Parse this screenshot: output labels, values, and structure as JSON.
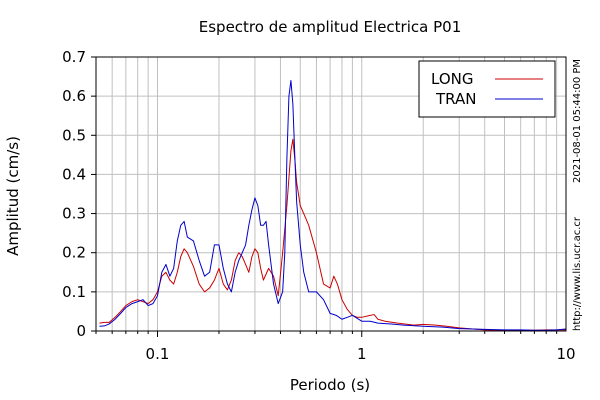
{
  "chart_data": {
    "type": "line",
    "title": "Espectro de amplitud Electrica P01",
    "xlabel": "Periodo (s)",
    "ylabel": "Amplitud (cm/s)",
    "xscale": "log",
    "xlim": [
      0.05,
      10
    ],
    "ylim": [
      0,
      0.7
    ],
    "x_ticks": [
      {
        "v": 0.1,
        "label": "0.1"
      },
      {
        "v": 1,
        "label": "1"
      },
      {
        "v": 10,
        "label": "10"
      }
    ],
    "y_ticks": [
      {
        "v": 0,
        "label": "0"
      },
      {
        "v": 0.1,
        "label": "0.1"
      },
      {
        "v": 0.2,
        "label": "0.2"
      },
      {
        "v": 0.3,
        "label": "0.3"
      },
      {
        "v": 0.4,
        "label": "0.4"
      },
      {
        "v": 0.5,
        "label": "0.5"
      },
      {
        "v": 0.6,
        "label": "0.6"
      },
      {
        "v": 0.7,
        "label": "0.7"
      }
    ],
    "grid": true,
    "legend_position": "top-right",
    "series": [
      {
        "name": "LONG",
        "color": "#cc0000",
        "points": [
          [
            0.052,
            0.02
          ],
          [
            0.055,
            0.022
          ],
          [
            0.058,
            0.022
          ],
          [
            0.062,
            0.035
          ],
          [
            0.066,
            0.05
          ],
          [
            0.07,
            0.065
          ],
          [
            0.075,
            0.075
          ],
          [
            0.08,
            0.08
          ],
          [
            0.085,
            0.075
          ],
          [
            0.09,
            0.07
          ],
          [
            0.095,
            0.08
          ],
          [
            0.1,
            0.1
          ],
          [
            0.105,
            0.14
          ],
          [
            0.11,
            0.15
          ],
          [
            0.115,
            0.13
          ],
          [
            0.12,
            0.12
          ],
          [
            0.125,
            0.15
          ],
          [
            0.13,
            0.19
          ],
          [
            0.135,
            0.21
          ],
          [
            0.14,
            0.2
          ],
          [
            0.15,
            0.165
          ],
          [
            0.16,
            0.12
          ],
          [
            0.17,
            0.1
          ],
          [
            0.18,
            0.11
          ],
          [
            0.19,
            0.13
          ],
          [
            0.2,
            0.16
          ],
          [
            0.21,
            0.12
          ],
          [
            0.22,
            0.105
          ],
          [
            0.23,
            0.13
          ],
          [
            0.24,
            0.18
          ],
          [
            0.25,
            0.2
          ],
          [
            0.26,
            0.19
          ],
          [
            0.27,
            0.17
          ],
          [
            0.28,
            0.15
          ],
          [
            0.29,
            0.19
          ],
          [
            0.3,
            0.21
          ],
          [
            0.31,
            0.2
          ],
          [
            0.32,
            0.16
          ],
          [
            0.33,
            0.13
          ],
          [
            0.35,
            0.16
          ],
          [
            0.37,
            0.14
          ],
          [
            0.39,
            0.09
          ],
          [
            0.41,
            0.2
          ],
          [
            0.43,
            0.32
          ],
          [
            0.45,
            0.46
          ],
          [
            0.46,
            0.49
          ],
          [
            0.47,
            0.44
          ],
          [
            0.48,
            0.38
          ],
          [
            0.5,
            0.32
          ],
          [
            0.52,
            0.3
          ],
          [
            0.55,
            0.27
          ],
          [
            0.6,
            0.2
          ],
          [
            0.65,
            0.12
          ],
          [
            0.7,
            0.11
          ],
          [
            0.73,
            0.14
          ],
          [
            0.76,
            0.12
          ],
          [
            0.8,
            0.08
          ],
          [
            0.85,
            0.055
          ],
          [
            0.9,
            0.04
          ],
          [
            0.95,
            0.035
          ],
          [
            1,
            0.035
          ],
          [
            1.1,
            0.04
          ],
          [
            1.15,
            0.042
          ],
          [
            1.2,
            0.03
          ],
          [
            1.3,
            0.025
          ],
          [
            1.5,
            0.02
          ],
          [
            1.8,
            0.015
          ],
          [
            2,
            0.017
          ],
          [
            2.3,
            0.015
          ],
          [
            2.6,
            0.012
          ],
          [
            3,
            0.008
          ],
          [
            3.5,
            0.005
          ],
          [
            4,
            0.003
          ],
          [
            5,
            0.002
          ],
          [
            6,
            0.002
          ],
          [
            7,
            0.002
          ],
          [
            8,
            0.003
          ],
          [
            9,
            0.003
          ],
          [
            10,
            0.003
          ]
        ]
      },
      {
        "name": "TRAN",
        "color": "#0000cc",
        "points": [
          [
            0.052,
            0.012
          ],
          [
            0.055,
            0.013
          ],
          [
            0.058,
            0.018
          ],
          [
            0.062,
            0.03
          ],
          [
            0.066,
            0.045
          ],
          [
            0.07,
            0.06
          ],
          [
            0.075,
            0.07
          ],
          [
            0.08,
            0.075
          ],
          [
            0.085,
            0.08
          ],
          [
            0.09,
            0.065
          ],
          [
            0.095,
            0.07
          ],
          [
            0.1,
            0.09
          ],
          [
            0.105,
            0.15
          ],
          [
            0.11,
            0.17
          ],
          [
            0.115,
            0.14
          ],
          [
            0.12,
            0.16
          ],
          [
            0.125,
            0.23
          ],
          [
            0.13,
            0.27
          ],
          [
            0.135,
            0.28
          ],
          [
            0.14,
            0.24
          ],
          [
            0.15,
            0.23
          ],
          [
            0.16,
            0.18
          ],
          [
            0.17,
            0.14
          ],
          [
            0.18,
            0.15
          ],
          [
            0.19,
            0.22
          ],
          [
            0.2,
            0.22
          ],
          [
            0.21,
            0.16
          ],
          [
            0.22,
            0.12
          ],
          [
            0.23,
            0.1
          ],
          [
            0.24,
            0.15
          ],
          [
            0.25,
            0.18
          ],
          [
            0.26,
            0.2
          ],
          [
            0.27,
            0.22
          ],
          [
            0.28,
            0.27
          ],
          [
            0.29,
            0.31
          ],
          [
            0.3,
            0.34
          ],
          [
            0.31,
            0.32
          ],
          [
            0.32,
            0.27
          ],
          [
            0.33,
            0.27
          ],
          [
            0.34,
            0.28
          ],
          [
            0.35,
            0.22
          ],
          [
            0.37,
            0.12
          ],
          [
            0.39,
            0.07
          ],
          [
            0.41,
            0.1
          ],
          [
            0.42,
            0.2
          ],
          [
            0.43,
            0.44
          ],
          [
            0.44,
            0.6
          ],
          [
            0.45,
            0.64
          ],
          [
            0.46,
            0.58
          ],
          [
            0.47,
            0.45
          ],
          [
            0.48,
            0.33
          ],
          [
            0.5,
            0.22
          ],
          [
            0.52,
            0.15
          ],
          [
            0.55,
            0.1
          ],
          [
            0.6,
            0.1
          ],
          [
            0.65,
            0.08
          ],
          [
            0.7,
            0.045
          ],
          [
            0.75,
            0.04
          ],
          [
            0.8,
            0.03
          ],
          [
            0.85,
            0.035
          ],
          [
            0.9,
            0.04
          ],
          [
            1,
            0.025
          ],
          [
            1.1,
            0.025
          ],
          [
            1.2,
            0.02
          ],
          [
            1.4,
            0.018
          ],
          [
            1.6,
            0.015
          ],
          [
            2,
            0.012
          ],
          [
            2.5,
            0.01
          ],
          [
            3,
            0.006
          ],
          [
            3.5,
            0.005
          ],
          [
            4,
            0.004
          ],
          [
            5,
            0.003
          ],
          [
            6,
            0.003
          ],
          [
            7,
            0.002
          ],
          [
            8,
            0.002
          ],
          [
            9,
            0.003
          ],
          [
            10,
            0.005
          ]
        ]
      }
    ],
    "side_label_timestamp": "2021-08-01 05:44:00 PM",
    "side_label_url": "http://www.lis.ucr.ac.cr"
  }
}
